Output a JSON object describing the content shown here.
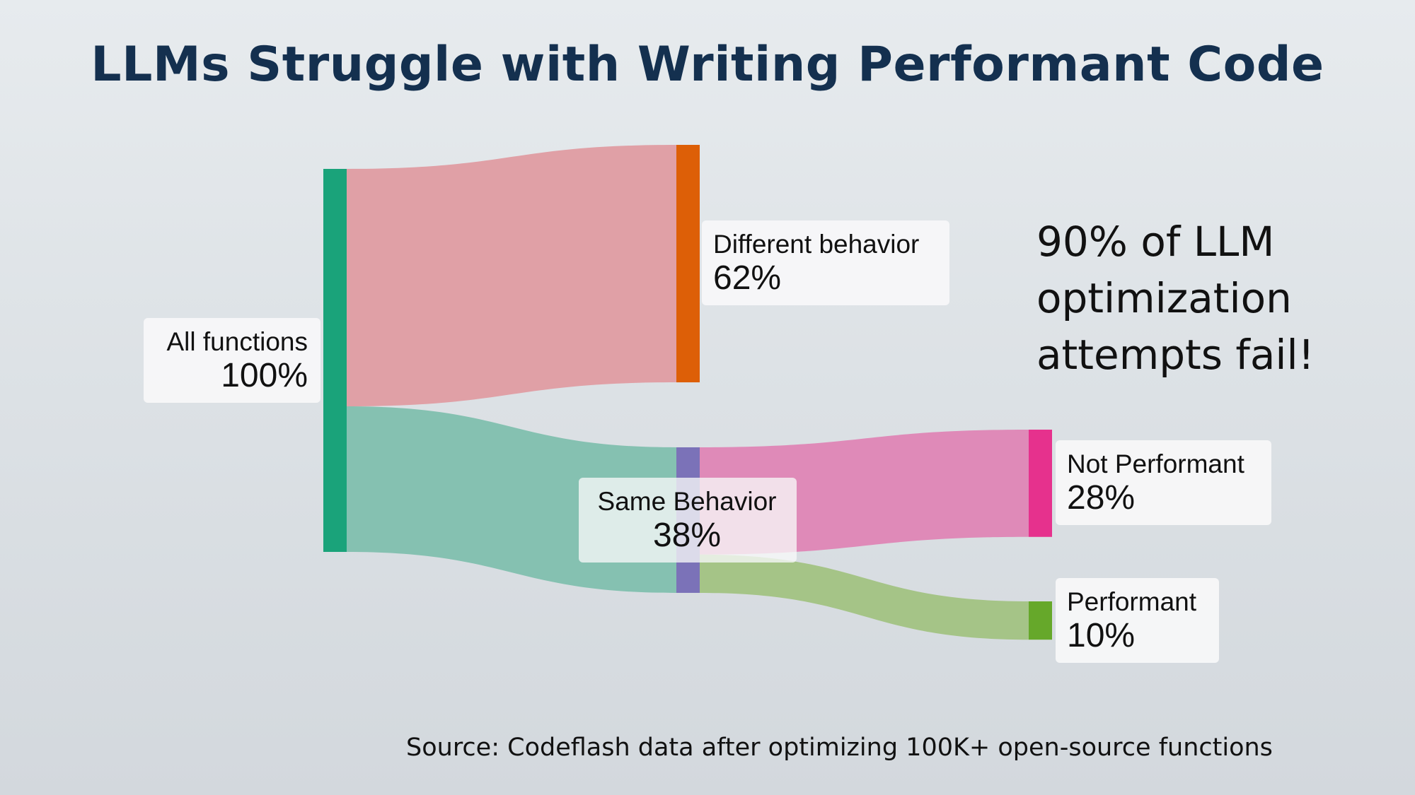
{
  "title": "LLMs Struggle with Writing Performant Code",
  "callout": "90% of LLM optimization attempts fail!",
  "source": "Source: Codeflash data after optimizing 100K+ open-source functions",
  "chart_data": {
    "type": "sankey",
    "title": "LLMs Struggle with Writing Performant Code",
    "unit": "%",
    "nodes": [
      {
        "id": "all",
        "name": "All functions",
        "value": 100,
        "label": "100%",
        "color": "#1aa37a"
      },
      {
        "id": "diff",
        "name": "Different behavior",
        "value": 62,
        "label": "62%",
        "color": "#dd5f07"
      },
      {
        "id": "same",
        "name": "Same Behavior",
        "value": 38,
        "label": "38%",
        "color": "#7b72b8"
      },
      {
        "id": "notperf",
        "name": "Not Performant",
        "value": 28,
        "label": "28%",
        "color": "#e6318d"
      },
      {
        "id": "perf",
        "name": "Performant",
        "value": 10,
        "label": "10%",
        "color": "#66a82a"
      }
    ],
    "links": [
      {
        "source": "all",
        "target": "diff",
        "value": 62,
        "color": "#e0a0a6"
      },
      {
        "source": "all",
        "target": "same",
        "value": 38,
        "color": "#85c1b1"
      },
      {
        "source": "same",
        "target": "notperf",
        "value": 28,
        "color": "#df8ab8"
      },
      {
        "source": "same",
        "target": "perf",
        "value": 10,
        "color": "#a5c487"
      }
    ]
  }
}
